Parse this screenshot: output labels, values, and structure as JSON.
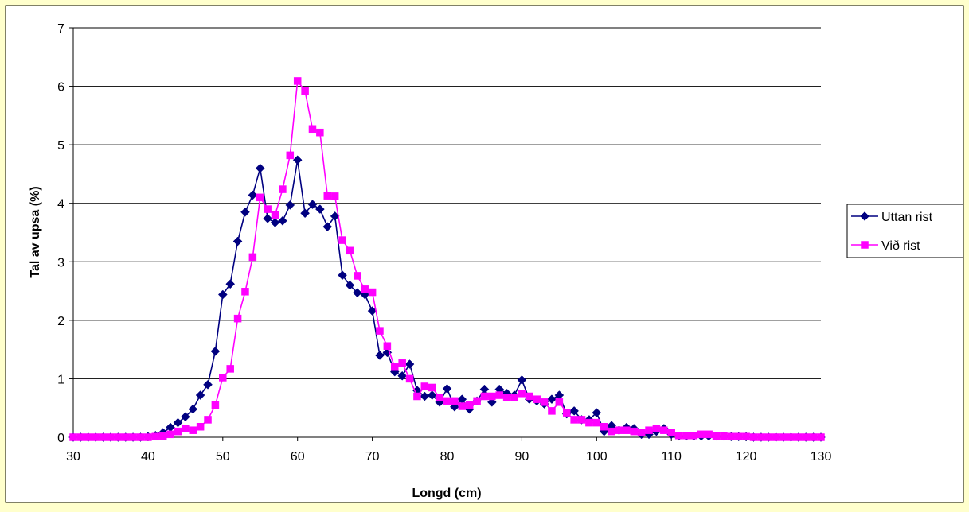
{
  "chart_data": {
    "type": "line",
    "title": "",
    "xlabel": "Longd (cm)",
    "ylabel": "Tal av upsa (%)",
    "xlim": [
      30,
      130
    ],
    "ylim": [
      0,
      7
    ],
    "xticks": [
      30,
      40,
      50,
      60,
      70,
      80,
      90,
      100,
      110,
      120,
      130
    ],
    "yticks": [
      0,
      1,
      2,
      3,
      4,
      5,
      6,
      7
    ],
    "grid": "horizontal",
    "legend": "right",
    "series": [
      {
        "name": "Uttan rist",
        "color": "#000080",
        "marker": "diamond",
        "x": [
          30,
          31,
          32,
          33,
          34,
          35,
          36,
          37,
          38,
          39,
          40,
          41,
          42,
          43,
          44,
          45,
          46,
          47,
          48,
          49,
          50,
          51,
          52,
          53,
          54,
          55,
          56,
          57,
          58,
          59,
          60,
          61,
          62,
          63,
          64,
          65,
          66,
          67,
          68,
          69,
          70,
          71,
          72,
          73,
          74,
          75,
          76,
          77,
          78,
          79,
          80,
          81,
          82,
          83,
          84,
          85,
          86,
          87,
          88,
          89,
          90,
          91,
          92,
          93,
          94,
          95,
          96,
          97,
          98,
          99,
          100,
          101,
          102,
          103,
          104,
          105,
          106,
          107,
          108,
          109,
          110,
          111,
          112,
          113,
          114,
          115,
          116,
          117,
          118,
          119,
          120,
          121,
          122,
          123,
          124,
          125,
          126,
          127,
          128,
          129,
          130
        ],
        "y": [
          0,
          0,
          0,
          0,
          0,
          0,
          0,
          0,
          0,
          0,
          0.01,
          0.03,
          0.08,
          0.17,
          0.25,
          0.35,
          0.48,
          0.72,
          0.9,
          1.47,
          2.44,
          2.62,
          3.35,
          3.85,
          4.14,
          4.6,
          3.74,
          3.67,
          3.7,
          3.97,
          4.74,
          3.83,
          3.98,
          3.9,
          3.6,
          3.78,
          2.77,
          2.6,
          2.47,
          2.44,
          2.16,
          1.4,
          1.45,
          1.12,
          1.05,
          1.25,
          0.8,
          0.7,
          0.72,
          0.6,
          0.83,
          0.52,
          0.65,
          0.48,
          0.62,
          0.82,
          0.6,
          0.82,
          0.75,
          0.72,
          0.98,
          0.65,
          0.62,
          0.57,
          0.65,
          0.72,
          0.4,
          0.45,
          0.3,
          0.3,
          0.42,
          0.1,
          0.2,
          0.12,
          0.17,
          0.15,
          0.05,
          0.05,
          0.1,
          0.15,
          0.05,
          0.02,
          0.02,
          0.02,
          0.02,
          0.02,
          0.02,
          0.02,
          0.01,
          0.01,
          0.01,
          0,
          0,
          0,
          0,
          0,
          0,
          0,
          0,
          0,
          0
        ]
      },
      {
        "name": "Við rist",
        "color": "#ff00ff",
        "marker": "square",
        "x": [
          30,
          31,
          32,
          33,
          34,
          35,
          36,
          37,
          38,
          39,
          40,
          41,
          42,
          43,
          44,
          45,
          46,
          47,
          48,
          49,
          50,
          51,
          52,
          53,
          54,
          55,
          56,
          57,
          58,
          59,
          60,
          61,
          62,
          63,
          64,
          65,
          66,
          67,
          68,
          69,
          70,
          71,
          72,
          73,
          74,
          75,
          76,
          77,
          78,
          79,
          80,
          81,
          82,
          83,
          84,
          85,
          86,
          87,
          88,
          89,
          90,
          91,
          92,
          93,
          94,
          95,
          96,
          97,
          98,
          99,
          100,
          101,
          102,
          103,
          104,
          105,
          106,
          107,
          108,
          109,
          110,
          111,
          112,
          113,
          114,
          115,
          116,
          117,
          118,
          119,
          120,
          121,
          122,
          123,
          124,
          125,
          126,
          127,
          128,
          129,
          130
        ],
        "y": [
          0,
          0,
          0,
          0,
          0,
          0,
          0,
          0,
          0,
          0,
          0,
          0.01,
          0.02,
          0.05,
          0.1,
          0.15,
          0.12,
          0.18,
          0.3,
          0.55,
          1.02,
          1.17,
          2.03,
          2.49,
          3.08,
          4.1,
          3.9,
          3.8,
          4.24,
          4.82,
          6.09,
          5.92,
          5.27,
          5.21,
          4.13,
          4.12,
          3.37,
          3.19,
          2.76,
          2.53,
          2.48,
          1.82,
          1.56,
          1.2,
          1.27,
          1.0,
          0.7,
          0.87,
          0.85,
          0.68,
          0.62,
          0.62,
          0.53,
          0.55,
          0.62,
          0.7,
          0.7,
          0.72,
          0.68,
          0.68,
          0.75,
          0.7,
          0.65,
          0.6,
          0.45,
          0.6,
          0.42,
          0.3,
          0.3,
          0.25,
          0.25,
          0.18,
          0.1,
          0.12,
          0.12,
          0.1,
          0.08,
          0.12,
          0.15,
          0.12,
          0.08,
          0.03,
          0.03,
          0.03,
          0.05,
          0.05,
          0.02,
          0.02,
          0.01,
          0.01,
          0.01,
          0,
          0,
          0,
          0,
          0,
          0,
          0,
          0,
          0,
          0
        ]
      }
    ]
  }
}
